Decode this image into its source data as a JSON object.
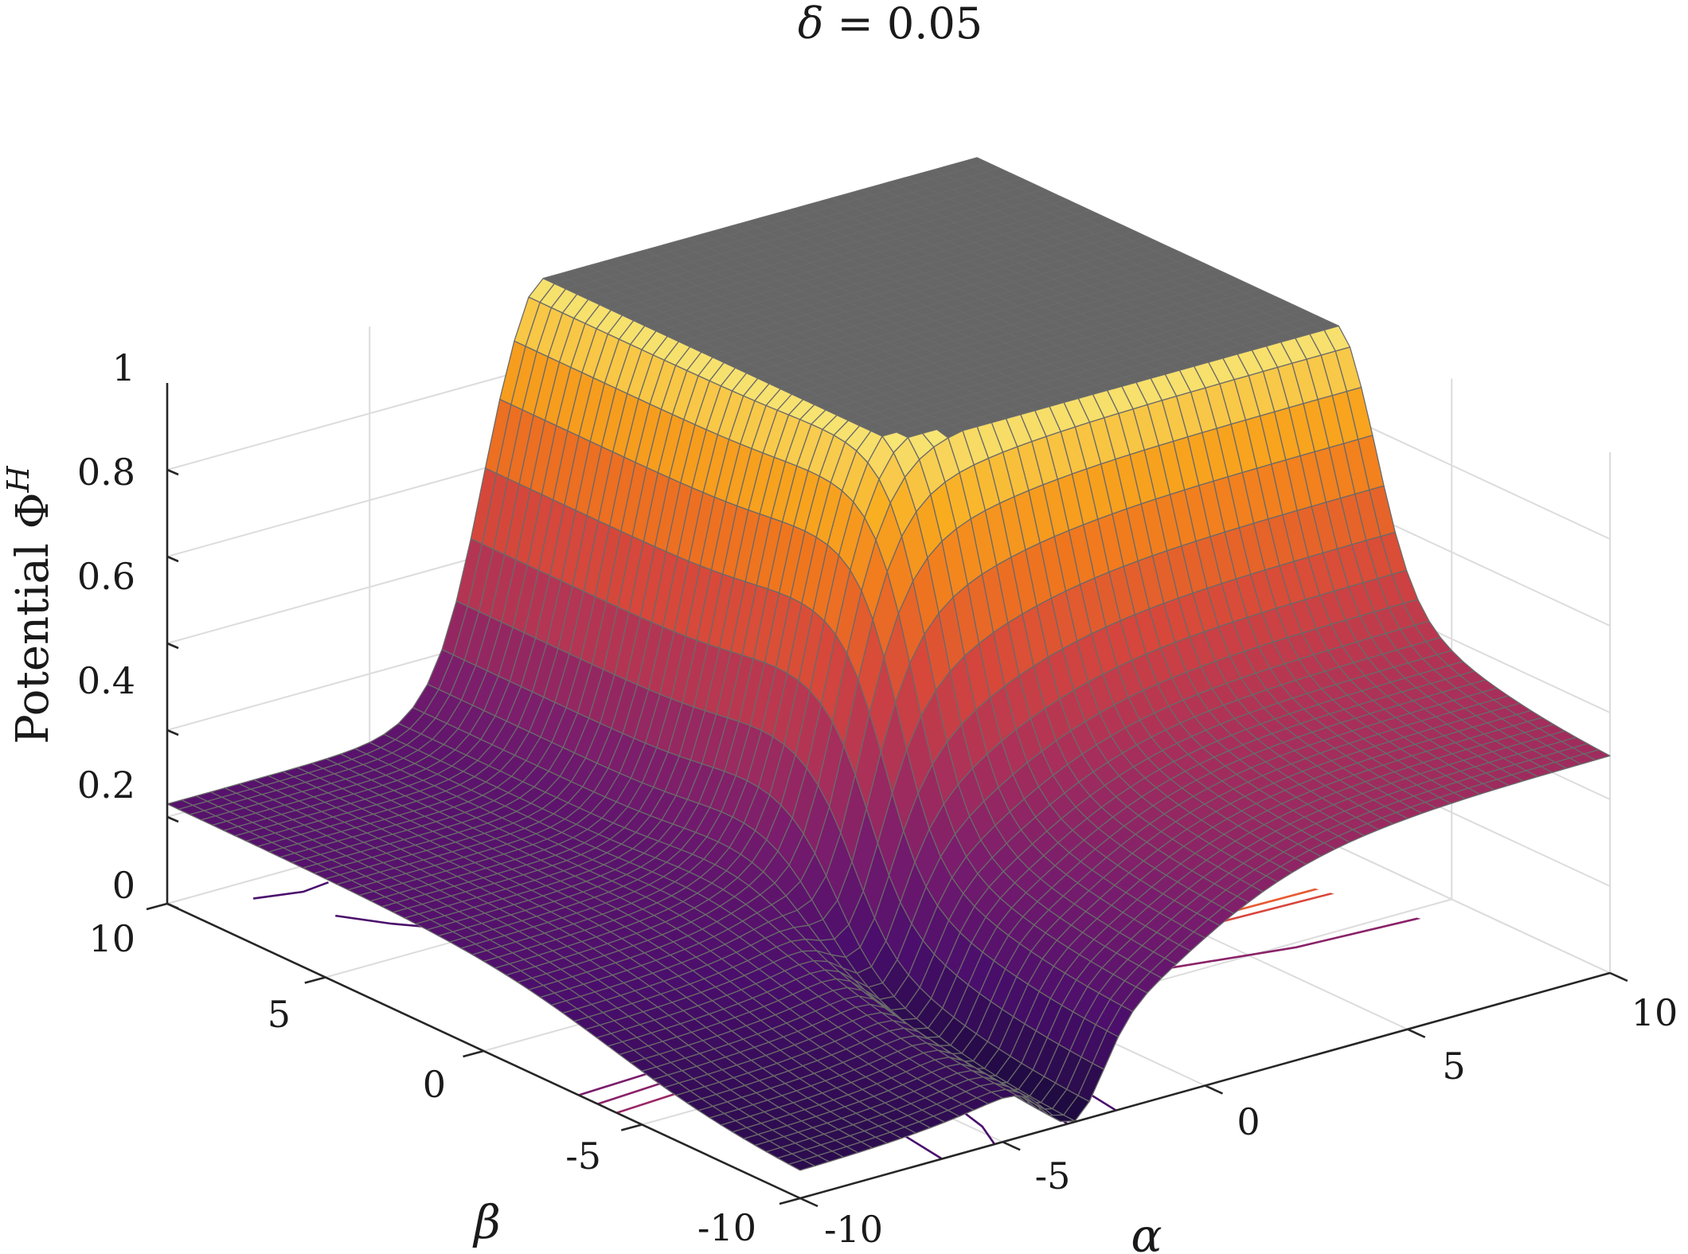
{
  "chart_data": {
    "type": "surface",
    "title": "δ = 0.05",
    "title_var": "δ",
    "title_eq": " = 0.05",
    "xlabel": "α",
    "ylabel": "β",
    "zlabel": "Potential Φ",
    "zlabel_sup": "H",
    "xlim": [
      -10,
      10
    ],
    "ylim": [
      -10,
      10
    ],
    "zlim": [
      0,
      1.2
    ],
    "x_ticks": [
      "-10",
      "-5",
      "0",
      "5",
      "10"
    ],
    "y_ticks": [
      "-10",
      "-5",
      "0",
      "5",
      "10"
    ],
    "z_ticks": [
      "0",
      "0.2",
      "0.4",
      "0.6",
      "0.8",
      "1"
    ],
    "grid": true,
    "colormap": "inferno",
    "colors": {
      "axis": "#262626",
      "grid": "#dcdcdc",
      "mesh_edge": "#6a6a6a",
      "saturated_top": "#666666"
    },
    "surface_samples": [
      {
        "alpha": -10,
        "beta": 10,
        "phi": 0.23
      },
      {
        "alpha": -10,
        "beta": -10,
        "phi": 0.05
      },
      {
        "alpha": 10,
        "beta": -10,
        "phi": 0.62
      },
      {
        "alpha": 10,
        "beta": 10,
        "phi": 1.2
      },
      {
        "alpha": -2,
        "beta": -5,
        "phi": 0.0
      },
      {
        "alpha": 0,
        "beta": 0,
        "phi": 1.2
      }
    ],
    "contour_levels": [
      0.1,
      0.2,
      0.3,
      0.4,
      0.5,
      0.6,
      0.7,
      0.8,
      0.9
    ]
  }
}
